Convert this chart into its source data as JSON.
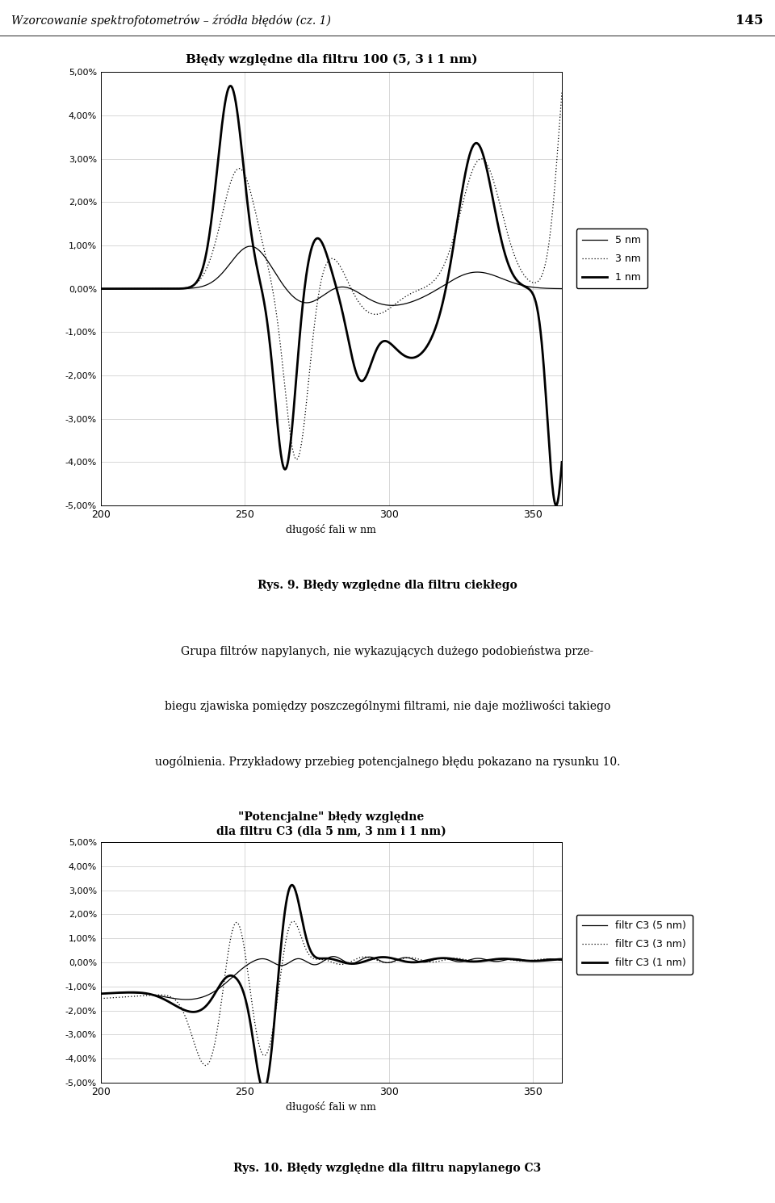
{
  "page_header": "Wzorcowanie spektrofotometrów – źródła błędów (cz. 1)",
  "page_number": "145",
  "chart1_title": "Błędy względne dla filtru 100 (5, 3 i 1 nm)",
  "chart1_xlabel": "długość fali w nm",
  "chart1_ylim": [
    -0.05,
    0.05
  ],
  "chart1_xlim": [
    200,
    360
  ],
  "chart1_xticks": [
    200,
    250,
    300,
    350
  ],
  "chart1_yticks": [
    -0.05,
    -0.04,
    -0.03,
    -0.02,
    -0.01,
    0.0,
    0.01,
    0.02,
    0.03,
    0.04,
    0.05
  ],
  "chart1_ytick_labels": [
    "-5,00%",
    "-4,00%",
    "-3,00%",
    "-2,00%",
    "-1,00%",
    "0,00%",
    "1,00%",
    "2,00%",
    "3,00%",
    "4,00%",
    "5,00%"
  ],
  "chart1_legend": [
    "5 nm",
    "3 nm",
    "1 nm"
  ],
  "chart2_title": "\"Potencjalne\" błędy względne\ndla filtru C3 (dla 5 nm, 3 nm i 1 nm)",
  "chart2_xlabel": "długość fali w nm",
  "chart2_ylim": [
    -0.05,
    0.05
  ],
  "chart2_xlim": [
    200,
    360
  ],
  "chart2_xticks": [
    200,
    250,
    300,
    350
  ],
  "chart2_yticks": [
    -0.05,
    -0.04,
    -0.03,
    -0.02,
    -0.01,
    0.0,
    0.01,
    0.02,
    0.03,
    0.04,
    0.05
  ],
  "chart2_ytick_labels": [
    "-5,00%",
    "-4,00%",
    "-3,00%",
    "-2,00%",
    "-1,00%",
    "0,00%",
    "1,00%",
    "2,00%",
    "3,00%",
    "4,00%",
    "5,00%"
  ],
  "chart2_legend": [
    "filtr C3 (5 nm)",
    "filtr C3 (3 nm)",
    "filtr C3 (1 nm)"
  ],
  "caption1": "Rys. 9. Błędy względne dla filtru ciekłego",
  "caption2": "Rys. 10. Błędy względne dla filtru napylanego C3",
  "body_line1": "Grupa filtrów napylanych, nie wykazujących dużego podobieństwa prze-",
  "body_line2": "biegu zjawiska pomiędzy poszczególnymi filtrami, nie daje możliwości takiego",
  "body_line3": "uogólnienia. Przykładowy przebieg potencjalnego błędu pokazano na rysunku 10.",
  "bg_color": "#ffffff"
}
